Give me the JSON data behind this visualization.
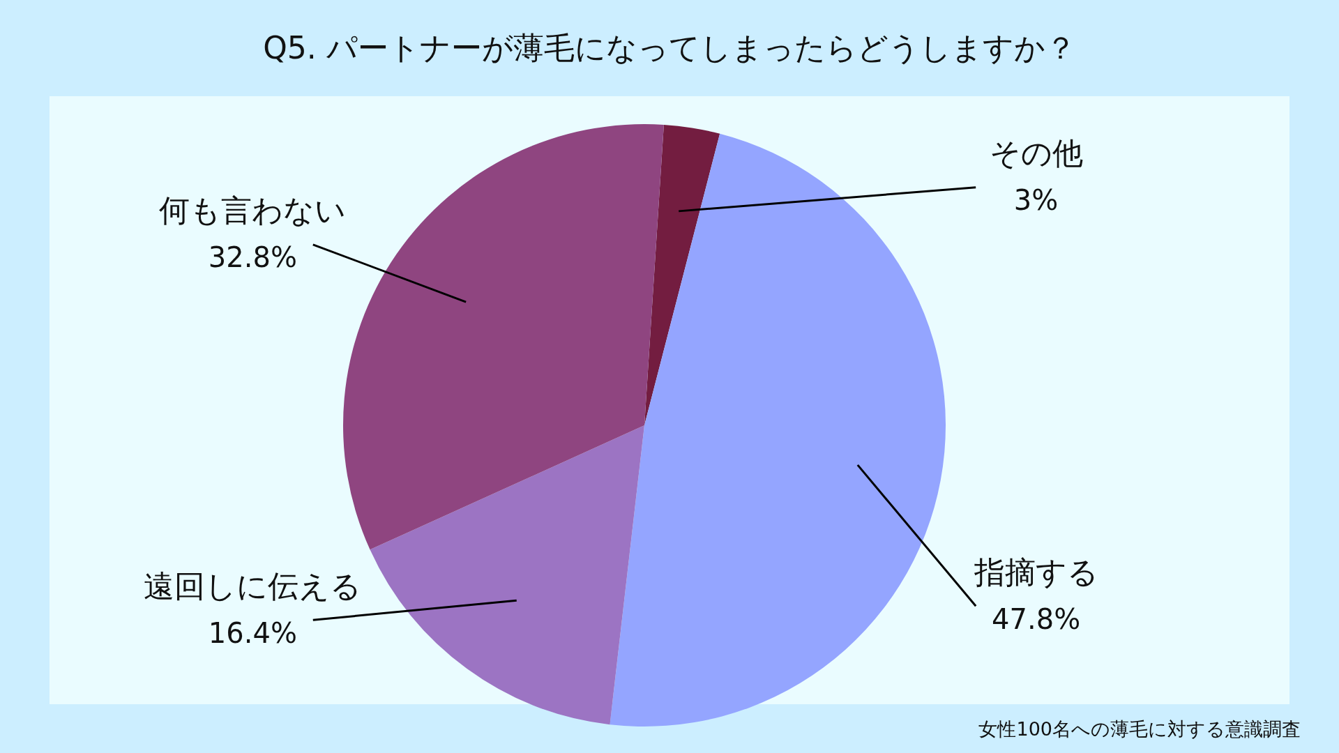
{
  "chart_data": {
    "type": "pie",
    "title": "Q5. パートナーが薄毛になってしまったらどうしますか？",
    "categories": [
      "その他",
      "指摘する",
      "遠回しに伝える",
      "何も言わない"
    ],
    "values": [
      3,
      47.8,
      16.4,
      32.8
    ],
    "colors": [
      "#731d40",
      "#94a5ff",
      "#9c74c3",
      "#8f4580"
    ],
    "value_labels": [
      "3%",
      "47.8%",
      "16.4%",
      "32.8%"
    ],
    "legend": false,
    "annotations": [
      "女性100名への薄毛に対する意識調査"
    ]
  }
}
